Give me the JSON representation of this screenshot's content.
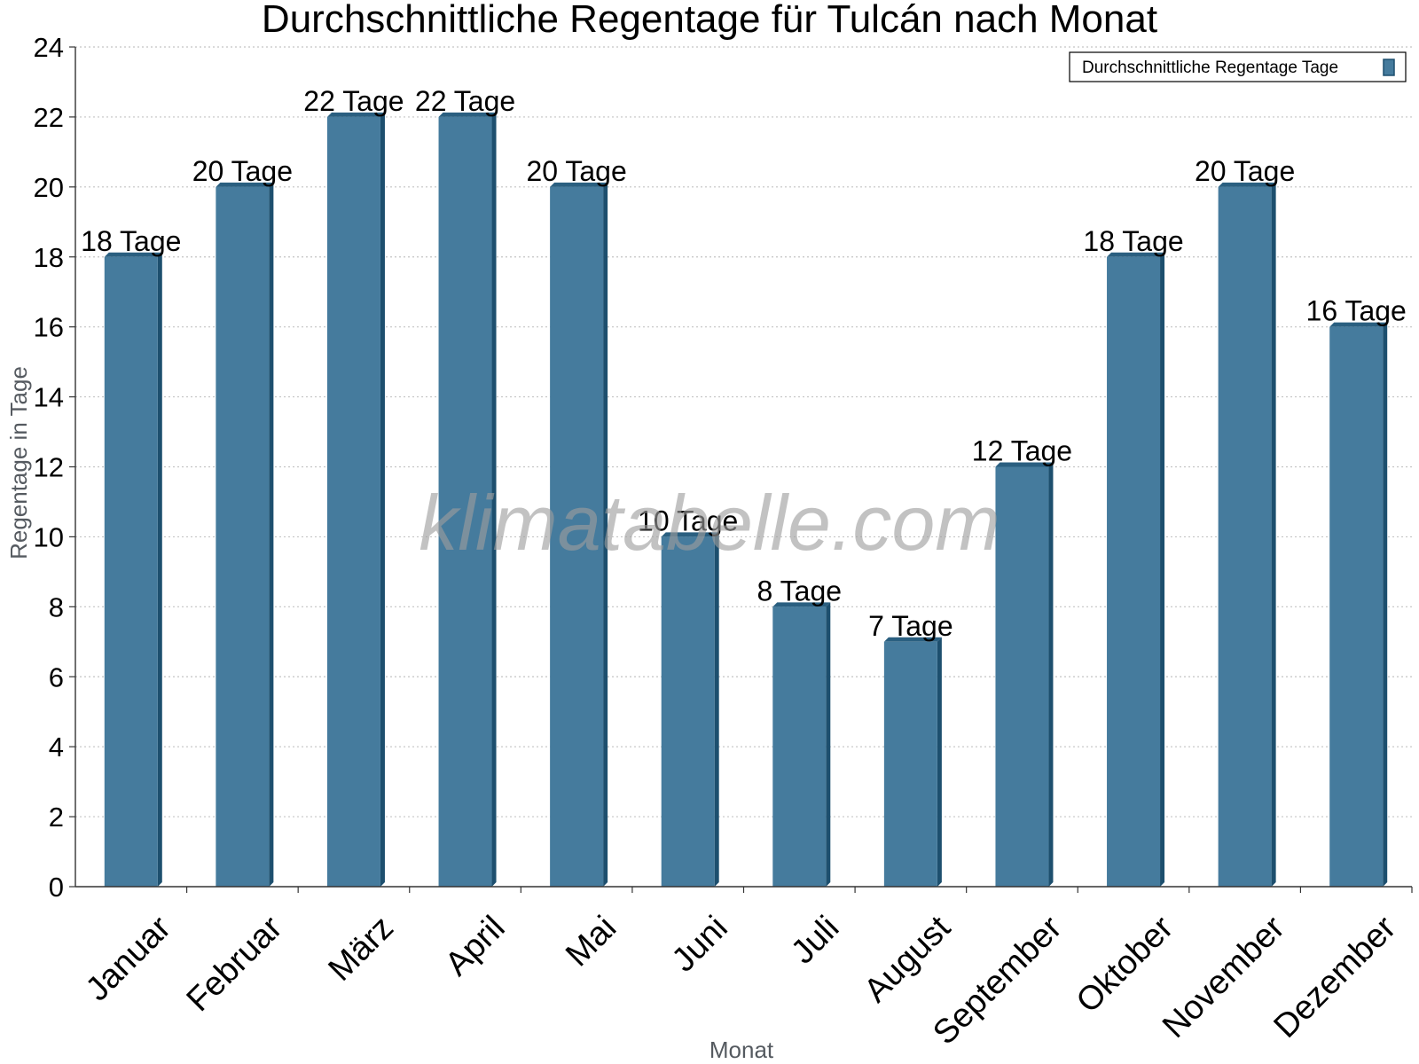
{
  "chart_data": {
    "type": "bar",
    "title": "Durchschnittliche Regentage für Tulcán nach Monat",
    "xlabel": "Monat",
    "ylabel": "Regentage in Tage",
    "categories": [
      "Januar",
      "Februar",
      "März",
      "April",
      "Mai",
      "Juni",
      "Juli",
      "August",
      "September",
      "Oktober",
      "November",
      "Dezember"
    ],
    "series": [
      {
        "name": "Durchschnittliche Regentage Tage",
        "values": [
          18,
          20,
          22,
          22,
          20,
          10,
          8,
          7,
          12,
          18,
          20,
          16
        ],
        "data_labels": [
          "18 Tage",
          "20 Tage",
          "22 Tage",
          "22 Tage",
          "20 Tage",
          "10 Tage",
          "8 Tage",
          "7 Tage",
          "12 Tage",
          "18 Tage",
          "20 Tage",
          "16 Tage"
        ]
      }
    ],
    "ylim": [
      0,
      24
    ],
    "yticks": [
      0,
      2,
      4,
      6,
      8,
      10,
      12,
      14,
      16,
      18,
      20,
      22,
      24
    ],
    "grid": true,
    "legend_position": "top-right",
    "bar_color": "#457b9d",
    "bar_side_color": "#1d4f6e",
    "bar_top_color": "#2a5f80",
    "watermark": "klimatabelle.com"
  }
}
